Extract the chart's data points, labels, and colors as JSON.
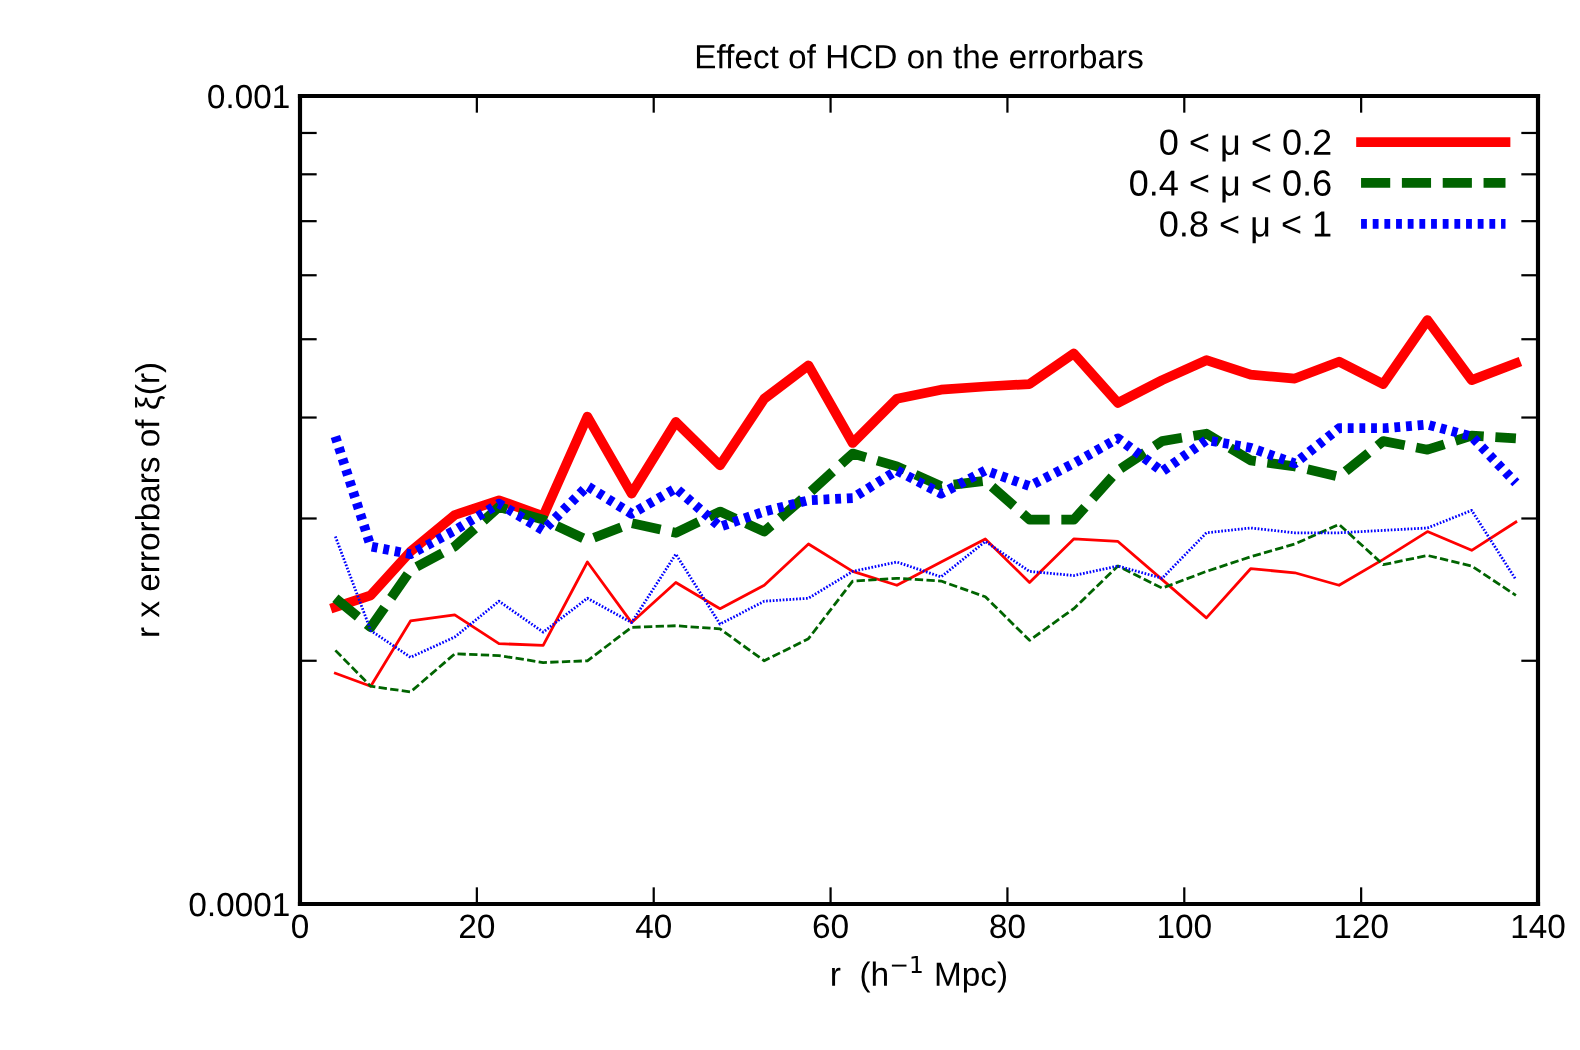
{
  "chart_data": {
    "type": "line",
    "title": "Effect of HCD on the errorbars",
    "xlabel": "r  (h$^{−1}$ Mpc)",
    "ylabel": "r x errorbars of ξ(r)",
    "x": [
      4,
      8,
      12.5,
      17.5,
      22.5,
      27.5,
      32.5,
      37.5,
      42.5,
      47.5,
      52.5,
      57.5,
      62.5,
      67.5,
      72.5,
      77.5,
      82.5,
      87.5,
      92.5,
      97.5,
      102.5,
      107.5,
      112.5,
      117.5,
      122.5,
      127.5,
      132.5,
      137.5
    ],
    "series": [
      {
        "name": "0 < μ < 0.2",
        "color": "#ff0000",
        "line_style": "solid",
        "values": [
          0.000233,
          0.000241,
          0.000273,
          0.000303,
          0.000316,
          0.000302,
          0.000401,
          0.000322,
          0.000395,
          0.000349,
          0.000422,
          0.000464,
          0.000372,
          0.000422,
          0.000433,
          0.000437,
          0.00044,
          0.00048,
          0.000417,
          0.000445,
          0.000471,
          0.000452,
          0.000447,
          0.000469,
          0.00044,
          0.000528,
          0.000445,
          0.000467
        ]
      },
      {
        "name": "0.4 < μ < 0.6",
        "color": "#006400",
        "line_style": "dashed",
        "values": [
          0.000239,
          0.00022,
          0.000259,
          0.000277,
          0.00031,
          0.000299,
          0.000282,
          0.000296,
          0.000288,
          0.000306,
          0.000289,
          0.000322,
          0.000361,
          0.000348,
          0.000329,
          0.000334,
          0.000299,
          0.000299,
          0.000344,
          0.000374,
          0.000382,
          0.000354,
          0.000348,
          0.000338,
          0.000374,
          0.000365,
          0.00038,
          0.000377
        ]
      },
      {
        "name": "0.8 < μ < 1",
        "color": "#0000ff",
        "line_style": "dotted",
        "values": [
          0.000379,
          0.000277,
          0.000271,
          0.00029,
          0.000313,
          0.00029,
          0.000329,
          0.000304,
          0.000327,
          0.000293,
          0.000306,
          0.000316,
          0.000318,
          0.000344,
          0.000322,
          0.000344,
          0.000329,
          0.000351,
          0.000377,
          0.000343,
          0.000375,
          0.000367,
          0.000351,
          0.000388,
          0.000388,
          0.000392,
          0.000379,
          0.000332
        ]
      },
      {
        "color": "#ff0000",
        "line_style": "solid",
        "values": [
          0.000193,
          0.000186,
          0.000224,
          0.000228,
          0.00021,
          0.000209,
          0.000265,
          0.000223,
          0.00025,
          0.000232,
          0.000248,
          0.000279,
          0.000258,
          0.000248,
          0.000265,
          0.000283,
          0.00025,
          0.000283,
          0.000281,
          0.000252,
          0.000226,
          0.00026,
          0.000257,
          0.000248,
          0.000267,
          0.000289,
          0.000274,
          0.000297
        ]
      },
      {
        "color": "#006400",
        "line_style": "dashed",
        "values": [
          0.000206,
          0.000186,
          0.000183,
          0.000204,
          0.000203,
          0.000199,
          0.0002,
          0.00022,
          0.000221,
          0.000219,
          0.0002,
          0.000213,
          0.000251,
          0.000253,
          0.000251,
          0.00024,
          0.000212,
          0.000232,
          0.000262,
          0.000246,
          0.000258,
          0.000269,
          0.000279,
          0.000295,
          0.000263,
          0.00027,
          0.000262,
          0.000241
        ]
      },
      {
        "color": "#0000ff",
        "line_style": "dotted",
        "values": [
          0.000285,
          0.000218,
          0.000202,
          0.000214,
          0.000237,
          0.000217,
          0.000239,
          0.000223,
          0.000271,
          0.000222,
          0.000237,
          0.000239,
          0.000258,
          0.000265,
          0.000254,
          0.000281,
          0.000258,
          0.000255,
          0.000262,
          0.000253,
          0.000288,
          0.000292,
          0.000288,
          0.000288,
          0.00029,
          0.000292,
          0.000307,
          0.000252
        ]
      }
    ],
    "log": "y",
    "xlim": [
      0,
      140
    ],
    "ylim": [
      0.0001,
      0.001
    ],
    "xticks": [
      0,
      20,
      40,
      60,
      80,
      100,
      120,
      140
    ],
    "yticks": [
      0.0001,
      {
        "value": 0.0002,
        "label": null
      },
      {
        "value": 0.0003,
        "label": null
      },
      {
        "value": 0.0004,
        "label": null
      },
      {
        "value": 0.0005,
        "label": null
      },
      {
        "value": 0.0006,
        "label": null
      },
      {
        "value": 0.0007,
        "label": null
      },
      {
        "value": 0.0008,
        "label": null
      },
      {
        "value": 0.0009,
        "label": null
      },
      0.001
    ],
    "grid": false,
    "legend": "top right",
    "marker": "none"
  }
}
